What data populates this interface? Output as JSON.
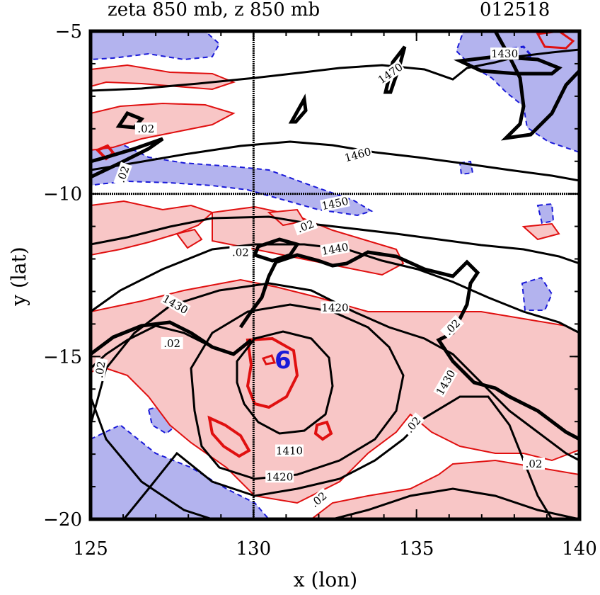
{
  "chart_data": {
    "type": "contour",
    "title_left": "zeta 850 mb, z 850 mb",
    "title_right": "012518",
    "xlabel": "x (lon)",
    "ylabel": "y (lat)",
    "xlim": [
      125,
      140
    ],
    "ylim": [
      -20,
      -5
    ],
    "xticks": [
      125,
      130,
      135,
      140
    ],
    "yticks": [
      -5,
      -10,
      -15,
      -20
    ],
    "xtick_labels": [
      "125",
      "130",
      "135",
      "140"
    ],
    "ytick_labels": [
      "−5",
      "−10",
      "−15",
      "−20"
    ],
    "crosshair": {
      "x": 130,
      "y": -10
    },
    "center_marker": {
      "symbol": "6",
      "x": 130.9,
      "y": -15.1
    },
    "colors": {
      "positive_fill": "#f8c6c6",
      "negative_fill": "#b3b3ee",
      "positive_line": "#e01010",
      "negative_line": "#1a1ad8",
      "height_line": "#000000"
    },
    "height_contour_labels": [
      {
        "text": "1470",
        "x": 134.2,
        "y": -6.3,
        "rot": 35
      },
      {
        "text": "1460",
        "x": 133.2,
        "y": -8.8,
        "rot": 15
      },
      {
        "text": "1450",
        "x": 132.5,
        "y": -10.3,
        "rot": 12
      },
      {
        "text": "1440",
        "x": 132.5,
        "y": -11.7,
        "rot": 10
      },
      {
        "text": "1430",
        "x": 127.6,
        "y": -13.4,
        "rot": -30
      },
      {
        "text": "1420",
        "x": 132.5,
        "y": -13.5,
        "rot": 0
      },
      {
        "text": "1410",
        "x": 131.1,
        "y": -17.9,
        "rot": 0
      },
      {
        "text": "1420",
        "x": 130.8,
        "y": -18.7,
        "rot": 0
      },
      {
        "text": "1430",
        "x": 135.9,
        "y": -15.8,
        "rot": 60
      },
      {
        "text": "1430",
        "x": 137.7,
        "y": -5.7,
        "rot": 0
      }
    ],
    "vorticity_contour_labels": [
      {
        "text": ".02",
        "x": 126.7,
        "y": -8.0,
        "rot": 0
      },
      {
        "text": ".02",
        "x": 126.0,
        "y": -9.4,
        "rot": 70
      },
      {
        "text": ".02",
        "x": 131.6,
        "y": -11.0,
        "rot": 20
      },
      {
        "text": ".02",
        "x": 129.6,
        "y": -11.8,
        "rot": 0
      },
      {
        "text": ".02",
        "x": 127.5,
        "y": -14.6,
        "rot": 0
      },
      {
        "text": ".02",
        "x": 136.1,
        "y": -14.1,
        "rot": 45
      },
      {
        "text": ".02",
        "x": 125.3,
        "y": -15.4,
        "rot": 80
      },
      {
        "text": ".02",
        "x": 134.9,
        "y": -17.1,
        "rot": 50
      },
      {
        "text": ".02",
        "x": 138.6,
        "y": -18.3,
        "rot": 0
      },
      {
        "text": ".02",
        "x": 132.0,
        "y": -19.4,
        "rot": 40
      }
    ]
  }
}
